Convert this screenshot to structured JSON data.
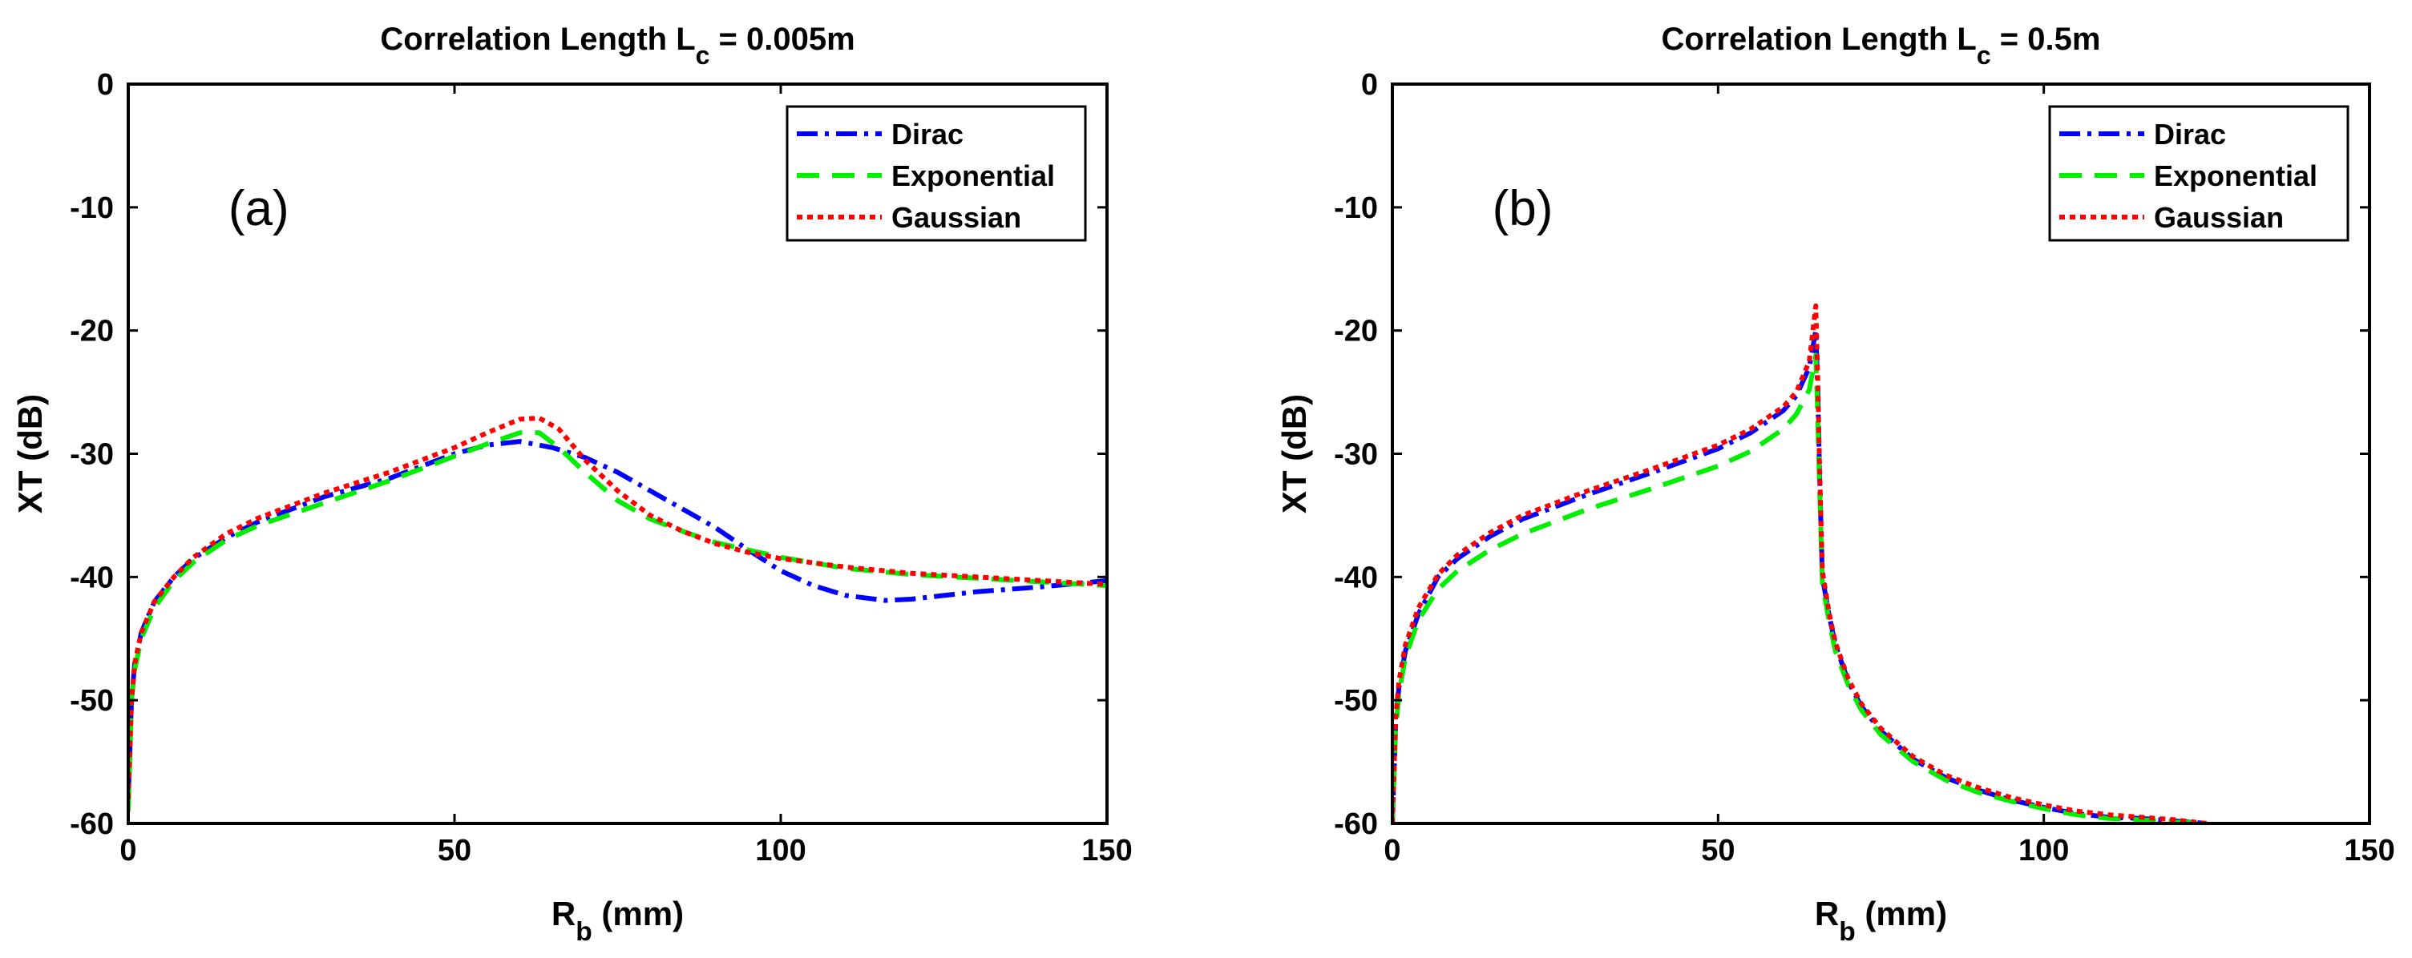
{
  "chart_data": [
    {
      "type": "line",
      "panel_label": "(a)",
      "title": {
        "main": "Correlation Length L",
        "sub": "c",
        "suffix": " = 0.005m"
      },
      "xlabel": {
        "main": "R",
        "sub": "b",
        "suffix": " (mm)"
      },
      "ylabel": "XT (dB)",
      "xlim": [
        0,
        150
      ],
      "ylim": [
        -60,
        0
      ],
      "xticks": [
        0,
        50,
        100,
        150
      ],
      "yticks": [
        0,
        -10,
        -20,
        -30,
        -40,
        -50,
        -60
      ],
      "grid": false,
      "legend_position": "top-right",
      "series": [
        {
          "name": "Dirac",
          "color": "#0000ff",
          "dash": "dashdot",
          "x": [
            0,
            0.5,
            1,
            2,
            4,
            7,
            10,
            15,
            20,
            30,
            40,
            50,
            55,
            60,
            65,
            70,
            75,
            80,
            85,
            90,
            95,
            100,
            105,
            110,
            116,
            120,
            130,
            140,
            150
          ],
          "y": [
            -58,
            -50,
            -47,
            -44.5,
            -42,
            -40,
            -38.5,
            -36.8,
            -35.5,
            -33.5,
            -32,
            -30,
            -29.3,
            -29,
            -29.5,
            -30.3,
            -31.5,
            -33,
            -34.5,
            -36,
            -37.8,
            -39.5,
            -40.7,
            -41.5,
            -41.9,
            -41.8,
            -41.2,
            -40.8,
            -40.3
          ]
        },
        {
          "name": "Exponential",
          "color": "#00ee00",
          "dash": "dashed",
          "x": [
            0,
            0.5,
            1,
            2,
            4,
            7,
            10,
            15,
            20,
            30,
            40,
            50,
            55,
            60,
            63,
            66,
            70,
            75,
            80,
            85,
            90,
            95,
            100,
            110,
            120,
            130,
            140,
            150
          ],
          "y": [
            -59,
            -50,
            -47.5,
            -45,
            -42.5,
            -40.3,
            -38.8,
            -37,
            -35.8,
            -34,
            -32.2,
            -30.2,
            -29.2,
            -28.3,
            -28.3,
            -29.5,
            -31.5,
            -33.8,
            -35.3,
            -36.3,
            -37.2,
            -37.8,
            -38.4,
            -39.3,
            -39.8,
            -40.1,
            -40.4,
            -40.7
          ]
        },
        {
          "name": "Gaussian",
          "color": "#ff0000",
          "dash": "dotted",
          "x": [
            0,
            0.5,
            1,
            2,
            4,
            7,
            10,
            15,
            20,
            30,
            40,
            50,
            55,
            60,
            63,
            66,
            70,
            75,
            80,
            85,
            90,
            95,
            100,
            110,
            120,
            130,
            140,
            150
          ],
          "y": [
            -58,
            -50,
            -47,
            -44.5,
            -42,
            -40,
            -38.4,
            -36.5,
            -35.2,
            -33.2,
            -31.5,
            -29.5,
            -28.3,
            -27.2,
            -27.1,
            -28,
            -30.5,
            -33,
            -35,
            -36.3,
            -37.3,
            -38,
            -38.5,
            -39.2,
            -39.7,
            -40,
            -40.3,
            -40.6
          ]
        }
      ]
    },
    {
      "type": "line",
      "panel_label": "(b)",
      "title": {
        "main": "Correlation Length L",
        "sub": "c",
        "suffix": " = 0.5m"
      },
      "xlabel": {
        "main": "R",
        "sub": "b",
        "suffix": " (mm)"
      },
      "ylabel": "XT (dB)",
      "xlim": [
        0,
        150
      ],
      "ylim": [
        -60,
        0
      ],
      "xticks": [
        0,
        50,
        100,
        150
      ],
      "yticks": [
        0,
        -10,
        -20,
        -30,
        -40,
        -50,
        -60
      ],
      "grid": false,
      "legend_position": "top-right",
      "series": [
        {
          "name": "Dirac",
          "color": "#0000ff",
          "dash": "dashdot",
          "x": [
            0,
            0.5,
            1,
            2,
            4,
            7,
            10,
            15,
            20,
            30,
            40,
            50,
            55,
            60,
            62,
            64,
            65,
            65.3,
            65.6,
            66,
            67,
            68,
            70,
            72,
            75,
            80,
            85,
            90,
            95,
            100,
            105,
            110,
            115,
            120,
            125
          ],
          "y": [
            -60,
            -52,
            -49,
            -46,
            -43,
            -40,
            -38.5,
            -36.7,
            -35.3,
            -33.3,
            -31.5,
            -29.6,
            -28.3,
            -26.5,
            -25.3,
            -23,
            -20,
            -25,
            -32,
            -40,
            -43,
            -45.5,
            -48.5,
            -50.5,
            -52.5,
            -54.8,
            -56.3,
            -57.3,
            -58.1,
            -58.7,
            -59.2,
            -59.5,
            -59.6,
            -59.8,
            -60
          ]
        },
        {
          "name": "Exponential",
          "color": "#00ee00",
          "dash": "dashed",
          "x": [
            0,
            0.5,
            1,
            2,
            4,
            7,
            10,
            15,
            20,
            30,
            40,
            50,
            55,
            60,
            62,
            64,
            65,
            65.3,
            65.6,
            66,
            67,
            68,
            70,
            72,
            75,
            80,
            85,
            90,
            95,
            100,
            105,
            110,
            115,
            120,
            125
          ],
          "y": [
            -60,
            -52.5,
            -49.5,
            -46.5,
            -43.5,
            -41,
            -39.5,
            -37.8,
            -36.5,
            -34.5,
            -32.8,
            -31,
            -29.8,
            -28,
            -26.8,
            -24.8,
            -22,
            -27,
            -33,
            -40.5,
            -43.5,
            -46,
            -48.8,
            -50.8,
            -52.8,
            -55,
            -56.5,
            -57.5,
            -58.2,
            -58.8,
            -59.3,
            -59.6,
            -59.7,
            -59.9,
            -60
          ]
        },
        {
          "name": "Gaussian",
          "color": "#ff0000",
          "dash": "dotted",
          "x": [
            0,
            0.5,
            1,
            2,
            4,
            7,
            10,
            15,
            20,
            30,
            40,
            50,
            55,
            60,
            62,
            64,
            65,
            65.3,
            65.6,
            66,
            67,
            68,
            70,
            72,
            75,
            80,
            85,
            90,
            95,
            100,
            105,
            110,
            115,
            120,
            125
          ],
          "y": [
            -60,
            -51.5,
            -48.5,
            -45.5,
            -42.5,
            -39.8,
            -38.2,
            -36.4,
            -35,
            -33,
            -31.2,
            -29.3,
            -28,
            -26.2,
            -25,
            -22.5,
            -18,
            -24,
            -31.5,
            -39.5,
            -42.8,
            -45.3,
            -48.3,
            -50.3,
            -52.3,
            -54.6,
            -56.1,
            -57.1,
            -57.9,
            -58.5,
            -59,
            -59.3,
            -59.5,
            -59.7,
            -60
          ]
        }
      ]
    }
  ]
}
